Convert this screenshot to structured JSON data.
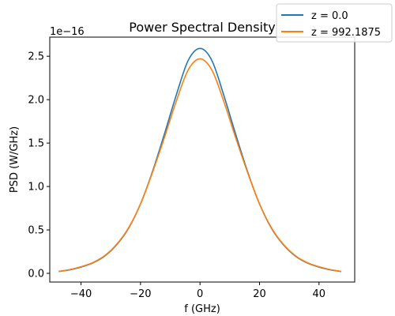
{
  "chart_data": {
    "type": "line",
    "title": "Power Spectral Density",
    "xlabel": "f (GHz)",
    "ylabel": "PSD (W/GHz)",
    "y_scale_label": "1e−16",
    "y_scale_factor": 1e-16,
    "xlim": [
      -50.5,
      52
    ],
    "ylim": [
      -0.1,
      2.72
    ],
    "x_ticks": [
      -40,
      -20,
      0,
      20,
      40
    ],
    "x_tick_labels": [
      "−40",
      "−20",
      "0",
      "20",
      "40"
    ],
    "y_ticks": [
      0.0,
      0.5,
      1.0,
      1.5,
      2.0,
      2.5
    ],
    "y_tick_labels": [
      "0.0",
      "0.5",
      "1.0",
      "1.5",
      "2.0",
      "2.5"
    ],
    "grid": false,
    "legend_position": "top-right",
    "x": [
      -47.5,
      -44,
      -40,
      -36,
      -32,
      -28,
      -24,
      -20,
      -16,
      -12,
      -8,
      -4,
      0,
      4,
      8,
      12,
      16,
      20,
      24,
      28,
      32,
      36,
      40,
      44,
      47.5
    ],
    "series": [
      {
        "name": "z = 0.0",
        "color": "#1f77b4",
        "values": [
          0.021,
          0.039,
          0.072,
          0.12,
          0.2,
          0.33,
          0.52,
          0.8,
          1.17,
          1.6,
          2.05,
          2.45,
          2.59,
          2.45,
          2.05,
          1.6,
          1.17,
          0.8,
          0.52,
          0.33,
          0.2,
          0.12,
          0.072,
          0.039,
          0.021
        ]
      },
      {
        "name": "z = 992.1875",
        "color": "#ff7f0e",
        "values": [
          0.023,
          0.042,
          0.076,
          0.124,
          0.205,
          0.335,
          0.525,
          0.8,
          1.16,
          1.56,
          1.98,
          2.34,
          2.47,
          2.34,
          1.98,
          1.56,
          1.16,
          0.8,
          0.525,
          0.335,
          0.205,
          0.124,
          0.076,
          0.042,
          0.023
        ]
      }
    ]
  }
}
